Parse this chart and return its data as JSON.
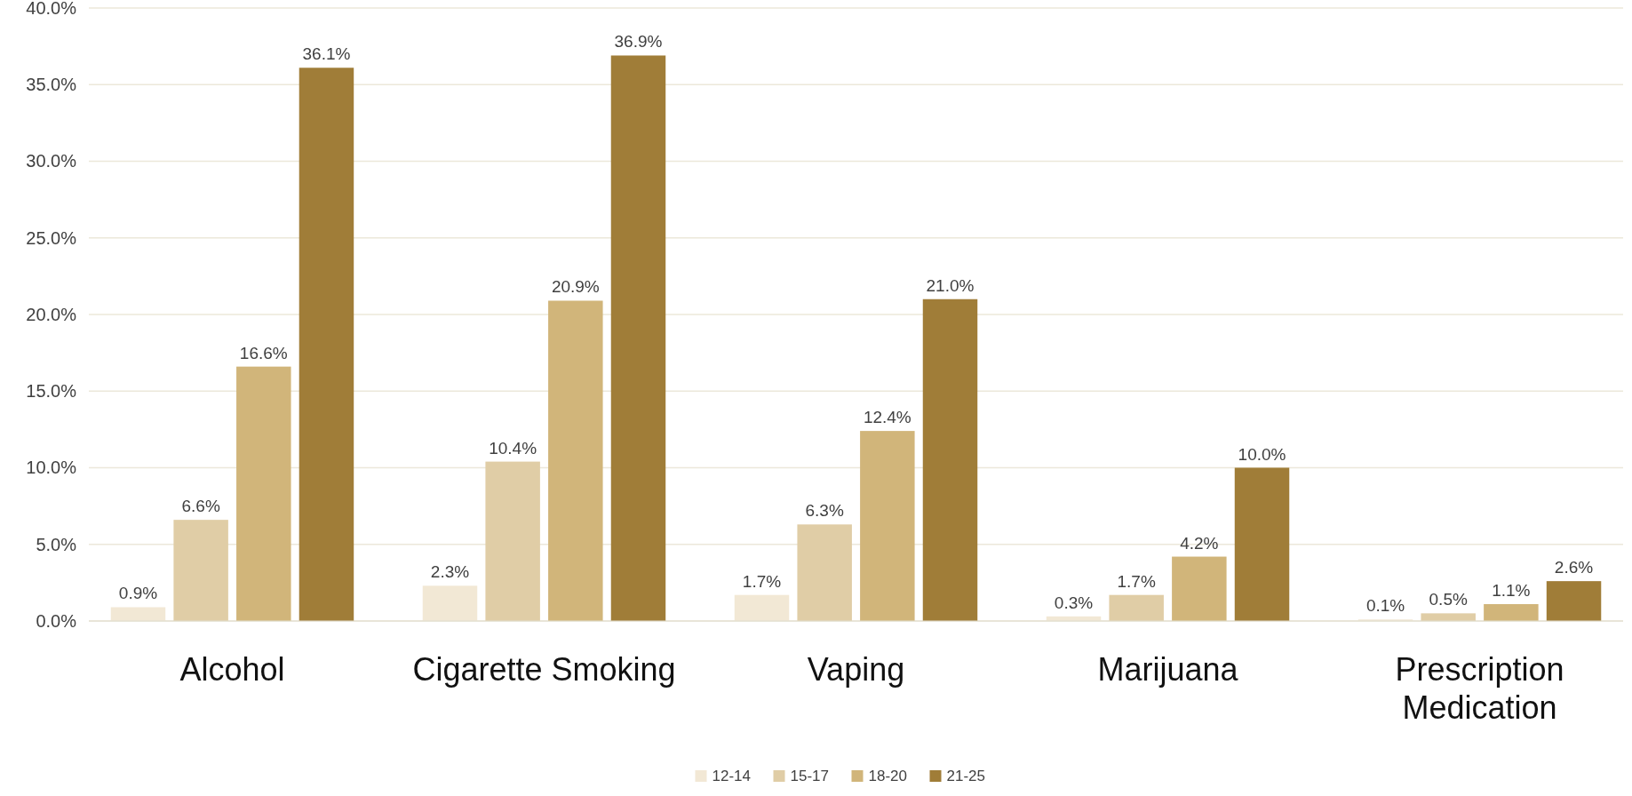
{
  "chart_data": {
    "type": "bar",
    "categories": [
      "Alcohol",
      "Cigarette Smoking",
      "Vaping",
      "Marijuana",
      "Prescription Medication"
    ],
    "series": [
      {
        "name": "12-14",
        "color": "#f2e8d5",
        "values": [
          0.9,
          2.3,
          1.7,
          0.3,
          0.1
        ],
        "value_labels": [
          "0.9%",
          "2.3%",
          "1.7%",
          "0.3%",
          "0.1%"
        ]
      },
      {
        "name": "15-17",
        "color": "#e0cda6",
        "values": [
          6.6,
          10.4,
          6.3,
          1.7,
          0.5
        ],
        "value_labels": [
          "6.6%",
          "10.4%",
          "6.3%",
          "1.7%",
          "0.5%"
        ]
      },
      {
        "name": "18-20",
        "color": "#d1b57a",
        "values": [
          16.6,
          20.9,
          12.4,
          4.2,
          1.1
        ],
        "value_labels": [
          "16.6%",
          "20.9%",
          "12.4%",
          "4.2%",
          "1.1%"
        ]
      },
      {
        "name": "21-25",
        "color": "#a07d38",
        "values": [
          36.1,
          36.9,
          21.0,
          10.0,
          2.6
        ],
        "value_labels": [
          "36.1%",
          "36.9%",
          "21.0%",
          "10.0%",
          "2.6%"
        ]
      }
    ],
    "ylim": [
      0,
      40
    ],
    "yticks": [
      {
        "value": 0,
        "label": "0.0%"
      },
      {
        "value": 5,
        "label": "5.0%"
      },
      {
        "value": 10,
        "label": "10.0%"
      },
      {
        "value": 15,
        "label": "15.0%"
      },
      {
        "value": 20,
        "label": "20.0%"
      },
      {
        "value": 25,
        "label": "25.0%"
      },
      {
        "value": 30,
        "label": "30.0%"
      },
      {
        "value": 35,
        "label": "35.0%"
      },
      {
        "value": 40,
        "label": "40.0%"
      }
    ],
    "grid": "y",
    "legend": "bottom"
  }
}
